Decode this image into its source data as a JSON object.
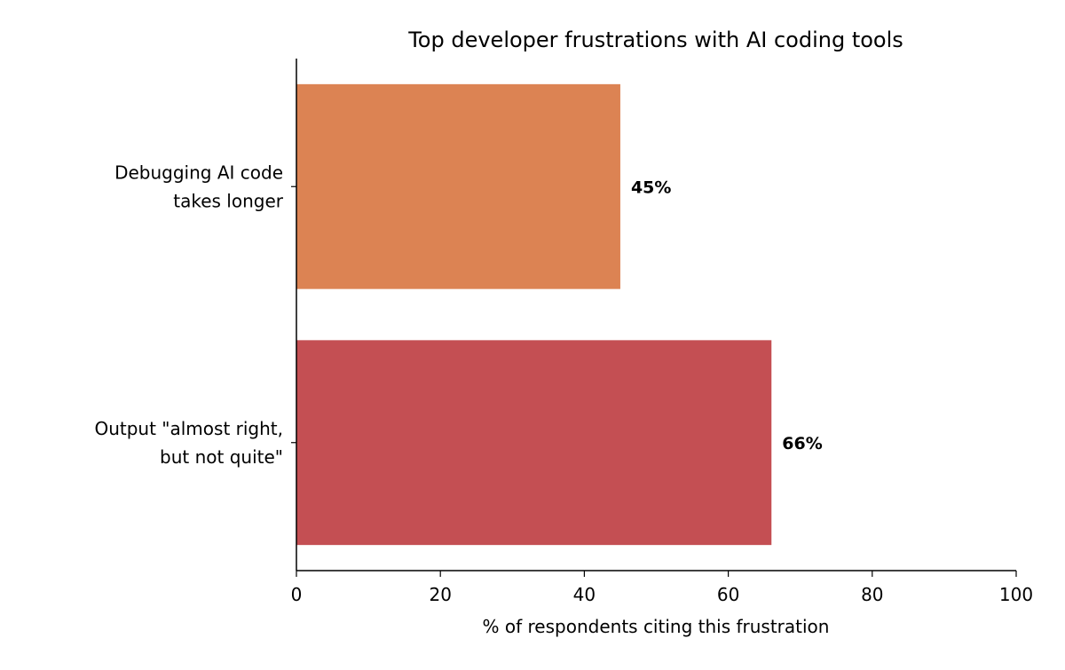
{
  "chart_data": {
    "type": "bar",
    "orientation": "horizontal",
    "title": "Top developer frustrations with AI coding tools",
    "xlabel": "% of respondents citing this frustration",
    "ylabel": "",
    "xlim": [
      0,
      100
    ],
    "xticks": [
      0,
      20,
      40,
      60,
      80,
      100
    ],
    "categories": [
      [
        "Debugging AI code",
        "takes longer"
      ],
      [
        "Output \"almost right,",
        "but not quite\""
      ]
    ],
    "values": [
      45,
      66
    ],
    "value_labels": [
      "45%",
      "66%"
    ],
    "colors": [
      "#dc8353",
      "#c44f53"
    ],
    "grid": false,
    "legend": "none"
  }
}
